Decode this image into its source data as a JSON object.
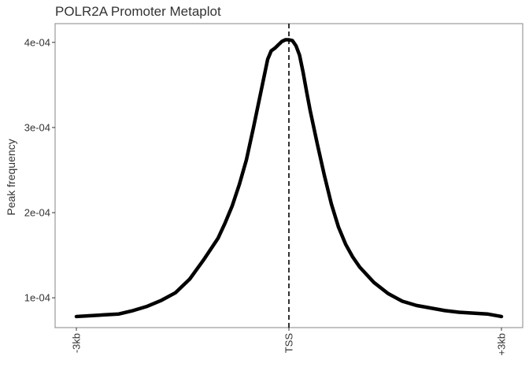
{
  "chart_data": {
    "type": "line",
    "title": "POLR2A Promoter Metaplot",
    "xlabel": "",
    "ylabel": "Peak frequency",
    "xlim": [
      -3000,
      3000
    ],
    "ylim": [
      6.5e-05,
      0.000422
    ],
    "x_ticks": [
      {
        "value": -3000,
        "label": "-3kb"
      },
      {
        "value": 0,
        "label": "TSS"
      },
      {
        "value": 3000,
        "label": "+3kb"
      }
    ],
    "y_ticks": [
      {
        "value": 0.0001,
        "label": "1e-04"
      },
      {
        "value": 0.0002,
        "label": "2e-04"
      },
      {
        "value": 0.0003,
        "label": "3e-04"
      },
      {
        "value": 0.0004,
        "label": "4e-04"
      }
    ],
    "reference_line": {
      "x": 0,
      "style": "dashed",
      "label": "TSS"
    },
    "grid": false,
    "line_color": "#000000",
    "series": [
      {
        "x": [
          -3000,
          -2800,
          -2600,
          -2400,
          -2200,
          -2000,
          -1800,
          -1600,
          -1400,
          -1200,
          -1000,
          -900,
          -800,
          -700,
          -600,
          -500,
          -400,
          -300,
          -250,
          -200,
          -150,
          -100,
          -50,
          0,
          50,
          100,
          150,
          200,
          250,
          300,
          400,
          500,
          600,
          700,
          800,
          900,
          1000,
          1200,
          1400,
          1600,
          1800,
          2000,
          2200,
          2400,
          2600,
          2800,
          3000
        ],
        "y": [
          7.8e-05,
          7.9e-05,
          8e-05,
          8.1e-05,
          8.5e-05,
          9e-05,
          9.7e-05,
          0.000106,
          0.000122,
          0.000145,
          0.00017,
          0.000188,
          0.000208,
          0.000233,
          0.000262,
          0.0003,
          0.00034,
          0.00038,
          0.00039,
          0.000393,
          0.000397,
          0.000401,
          0.000403,
          0.000403,
          0.000402,
          0.000396,
          0.000385,
          0.000365,
          0.000342,
          0.00032,
          0.000281,
          0.000244,
          0.00021,
          0.000183,
          0.000163,
          0.000148,
          0.000136,
          0.000118,
          0.000105,
          9.6e-05,
          9.1e-05,
          8.8e-05,
          8.5e-05,
          8.3e-05,
          8.2e-05,
          8.1e-05,
          7.8e-05
        ]
      }
    ]
  }
}
